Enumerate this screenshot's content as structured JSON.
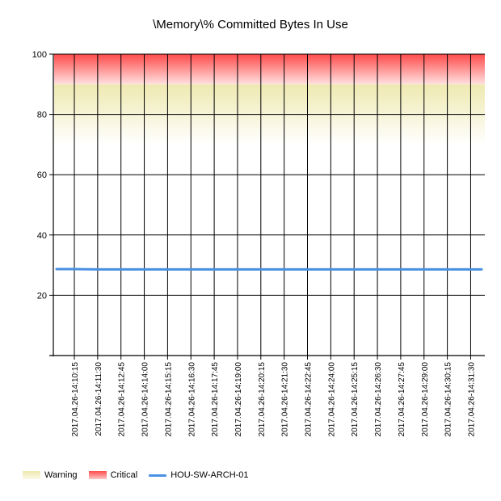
{
  "chart_data": {
    "type": "line",
    "title": "\\Memory\\% Committed Bytes In Use",
    "xlabel": "",
    "ylabel": "",
    "ylim": [
      0,
      100
    ],
    "yticks": [
      20,
      40,
      60,
      80,
      100
    ],
    "categories": [
      "2017.04.26-14:10:15",
      "2017.04.26-14:11:30",
      "2017.04.26-14:12:45",
      "2017.04.26-14:14:00",
      "2017.04.26-14:15:15",
      "2017.04.26-14:16:30",
      "2017.04.26-14:17:45",
      "2017.04.26-14:19:00",
      "2017.04.26-14:20:15",
      "2017.04.26-14:21:30",
      "2017.04.26-14:22:45",
      "2017.04.26-14:24:00",
      "2017.04.26-14:25:15",
      "2017.04.26-14:26:30",
      "2017.04.26-14:27:45",
      "2017.04.26-14:29:00",
      "2017.04.26-14:30:15",
      "2017.04.26-14:31:30"
    ],
    "series": [
      {
        "name": "HOU-SW-ARCH-01",
        "color": "#4a90e2",
        "values": [
          28.7,
          28.6,
          28.6,
          28.6,
          28.6,
          28.6,
          28.6,
          28.6,
          28.6,
          28.6,
          28.6,
          28.6,
          28.6,
          28.6,
          28.6,
          28.6,
          28.6,
          28.6
        ]
      }
    ],
    "bands": [
      {
        "name": "Warning",
        "from": 70,
        "to": 90,
        "color": "#eee8aa"
      },
      {
        "name": "Critical",
        "from": 90,
        "to": 100,
        "color": "#ff4d4d"
      }
    ],
    "grid": true,
    "legend_position": "bottom-left"
  },
  "legend": {
    "warning_label": "Warning",
    "critical_label": "Critical",
    "series_label": "HOU-SW-ARCH-01"
  }
}
